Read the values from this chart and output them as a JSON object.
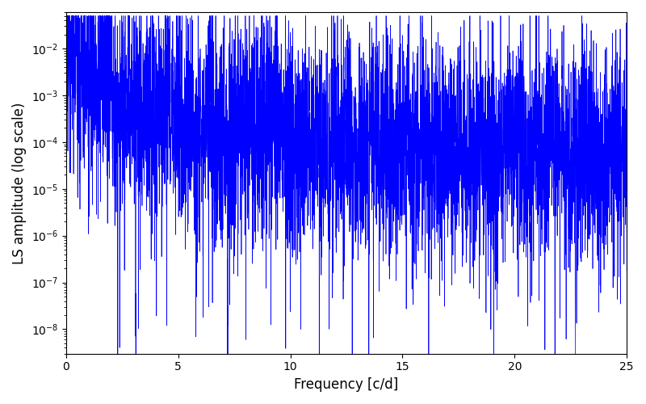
{
  "xlabel": "Frequency [c/d]",
  "ylabel": "LS amplitude (log scale)",
  "xlim": [
    0,
    25
  ],
  "ylim": [
    3e-09,
    0.06
  ],
  "line_color": "#0000ff",
  "background_color": "#ffffff",
  "figsize": [
    8.0,
    5.0
  ],
  "dpi": 100,
  "seed": 12345,
  "n_points": 5000,
  "freq_max": 25.0
}
